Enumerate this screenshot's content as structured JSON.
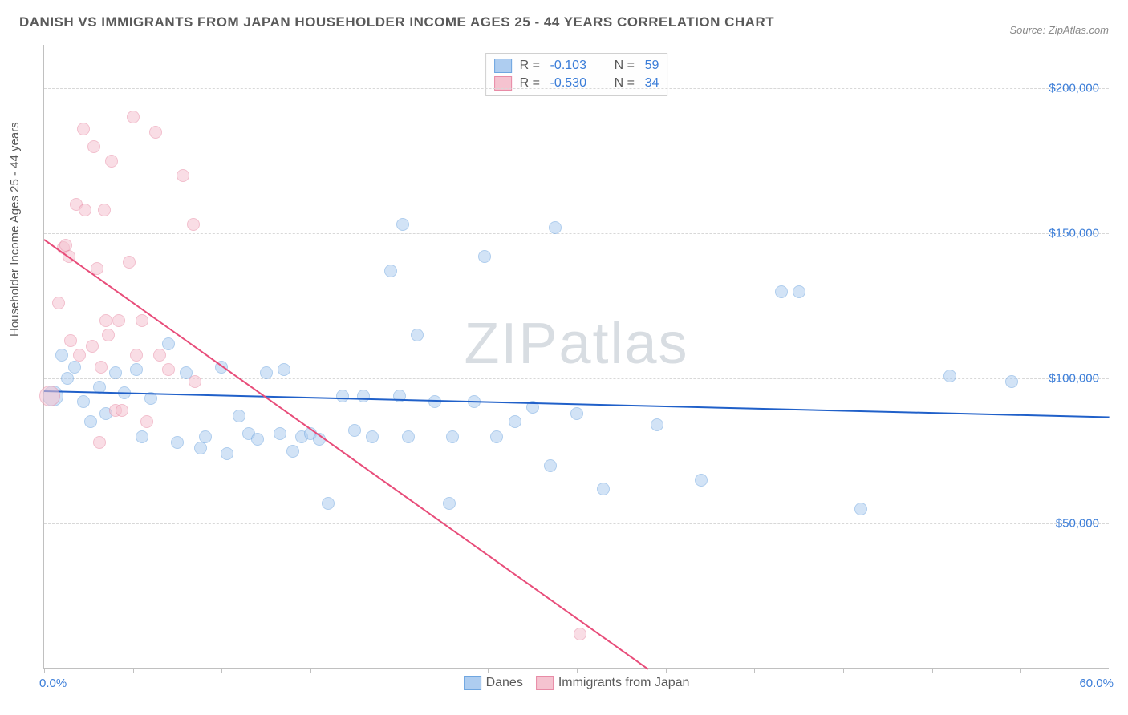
{
  "title": "DANISH VS IMMIGRANTS FROM JAPAN HOUSEHOLDER INCOME AGES 25 - 44 YEARS CORRELATION CHART",
  "source": "Source: ZipAtlas.com",
  "ylabel": "Householder Income Ages 25 - 44 years",
  "watermark_bold": "ZIP",
  "watermark_thin": "atlas",
  "chart": {
    "type": "scatter",
    "xlim": [
      0,
      60
    ],
    "ylim": [
      0,
      215000
    ],
    "x_axis_min_label": "0.0%",
    "x_axis_max_label": "60.0%",
    "y_ticks": [
      50000,
      100000,
      150000,
      200000
    ],
    "y_tick_labels": [
      "$50,000",
      "$100,000",
      "$150,000",
      "$200,000"
    ],
    "x_ticks": [
      0,
      5,
      10,
      15,
      20,
      25,
      30,
      35,
      40,
      45,
      50,
      55,
      60
    ],
    "background_color": "#ffffff",
    "grid_color": "#d8d8d8",
    "axis_color": "#c0c0c0",
    "label_color": "#3b7dd8",
    "title_color": "#5a5a5a",
    "marker_radius": 8,
    "marker_radius_large": 13,
    "series": [
      {
        "name": "Danes",
        "legend_label": "Danes",
        "fill_color": "#aecdf0",
        "stroke_color": "#6fa6e0",
        "fill_opacity": 0.55,
        "trend_color": "#2060c9",
        "R": "-0.103",
        "N": "59",
        "trend_line": {
          "x1": 0,
          "y1": 96000,
          "x2": 60,
          "y2": 87000
        },
        "points": [
          {
            "x": 0.5,
            "y": 94000,
            "r": 13
          },
          {
            "x": 1,
            "y": 108000
          },
          {
            "x": 1.3,
            "y": 100000
          },
          {
            "x": 1.7,
            "y": 104000
          },
          {
            "x": 2.2,
            "y": 92000
          },
          {
            "x": 2.6,
            "y": 85000
          },
          {
            "x": 3.1,
            "y": 97000
          },
          {
            "x": 3.5,
            "y": 88000
          },
          {
            "x": 4.0,
            "y": 102000
          },
          {
            "x": 4.5,
            "y": 95000
          },
          {
            "x": 5.2,
            "y": 103000
          },
          {
            "x": 5.5,
            "y": 80000
          },
          {
            "x": 6.0,
            "y": 93000
          },
          {
            "x": 7.0,
            "y": 112000
          },
          {
            "x": 7.5,
            "y": 78000
          },
          {
            "x": 8.0,
            "y": 102000
          },
          {
            "x": 8.8,
            "y": 76000
          },
          {
            "x": 9.1,
            "y": 80000
          },
          {
            "x": 10.0,
            "y": 104000
          },
          {
            "x": 10.3,
            "y": 74000
          },
          {
            "x": 11.0,
            "y": 87000
          },
          {
            "x": 11.5,
            "y": 81000
          },
          {
            "x": 12.0,
            "y": 79000
          },
          {
            "x": 12.5,
            "y": 102000
          },
          {
            "x": 13.3,
            "y": 81000
          },
          {
            "x": 13.5,
            "y": 103000
          },
          {
            "x": 14.0,
            "y": 75000
          },
          {
            "x": 14.5,
            "y": 80000
          },
          {
            "x": 15.0,
            "y": 81000
          },
          {
            "x": 15.5,
            "y": 79000
          },
          {
            "x": 16.0,
            "y": 57000
          },
          {
            "x": 16.8,
            "y": 94000
          },
          {
            "x": 17.5,
            "y": 82000
          },
          {
            "x": 18.0,
            "y": 94000
          },
          {
            "x": 18.5,
            "y": 80000
          },
          {
            "x": 19.5,
            "y": 137000
          },
          {
            "x": 20.0,
            "y": 94000
          },
          {
            "x": 20.2,
            "y": 153000
          },
          {
            "x": 20.5,
            "y": 80000
          },
          {
            "x": 21.0,
            "y": 115000
          },
          {
            "x": 22.0,
            "y": 92000
          },
          {
            "x": 22.8,
            "y": 57000
          },
          {
            "x": 23.0,
            "y": 80000
          },
          {
            "x": 24.2,
            "y": 92000
          },
          {
            "x": 24.8,
            "y": 142000
          },
          {
            "x": 25.5,
            "y": 80000
          },
          {
            "x": 26.5,
            "y": 85000
          },
          {
            "x": 27.5,
            "y": 90000
          },
          {
            "x": 28.5,
            "y": 70000
          },
          {
            "x": 28.8,
            "y": 152000
          },
          {
            "x": 30.0,
            "y": 88000
          },
          {
            "x": 31.5,
            "y": 62000
          },
          {
            "x": 34.5,
            "y": 84000
          },
          {
            "x": 37.0,
            "y": 65000
          },
          {
            "x": 41.5,
            "y": 130000
          },
          {
            "x": 42.5,
            "y": 130000
          },
          {
            "x": 46.0,
            "y": 55000
          },
          {
            "x": 51.0,
            "y": 101000
          },
          {
            "x": 54.5,
            "y": 99000
          }
        ]
      },
      {
        "name": "Immigrants from Japan",
        "legend_label": "Immigrants from Japan",
        "fill_color": "#f5c3d0",
        "stroke_color": "#e88ba6",
        "fill_opacity": 0.55,
        "trend_color": "#e84d7a",
        "R": "-0.530",
        "N": "34",
        "trend_line": {
          "x1": 0,
          "y1": 148000,
          "x2": 34,
          "y2": 0
        },
        "points": [
          {
            "x": 0.3,
            "y": 94000,
            "r": 13
          },
          {
            "x": 0.8,
            "y": 126000
          },
          {
            "x": 1.1,
            "y": 145000
          },
          {
            "x": 1.2,
            "y": 146000
          },
          {
            "x": 1.4,
            "y": 142000
          },
          {
            "x": 1.5,
            "y": 113000
          },
          {
            "x": 1.8,
            "y": 160000
          },
          {
            "x": 2.0,
            "y": 108000
          },
          {
            "x": 2.2,
            "y": 186000
          },
          {
            "x": 2.3,
            "y": 158000
          },
          {
            "x": 2.7,
            "y": 111000
          },
          {
            "x": 2.8,
            "y": 180000
          },
          {
            "x": 3.0,
            "y": 138000
          },
          {
            "x": 3.1,
            "y": 78000
          },
          {
            "x": 3.2,
            "y": 104000
          },
          {
            "x": 3.4,
            "y": 158000
          },
          {
            "x": 3.5,
            "y": 120000
          },
          {
            "x": 3.6,
            "y": 115000
          },
          {
            "x": 3.8,
            "y": 175000
          },
          {
            "x": 4.0,
            "y": 89000
          },
          {
            "x": 4.2,
            "y": 120000
          },
          {
            "x": 4.4,
            "y": 89000
          },
          {
            "x": 4.8,
            "y": 140000
          },
          {
            "x": 5.0,
            "y": 190000
          },
          {
            "x": 5.2,
            "y": 108000
          },
          {
            "x": 5.5,
            "y": 120000
          },
          {
            "x": 5.8,
            "y": 85000
          },
          {
            "x": 6.3,
            "y": 185000
          },
          {
            "x": 6.5,
            "y": 108000
          },
          {
            "x": 7.0,
            "y": 103000
          },
          {
            "x": 7.8,
            "y": 170000
          },
          {
            "x": 8.4,
            "y": 153000
          },
          {
            "x": 8.5,
            "y": 99000
          },
          {
            "x": 30.2,
            "y": 12000
          }
        ]
      }
    ]
  }
}
